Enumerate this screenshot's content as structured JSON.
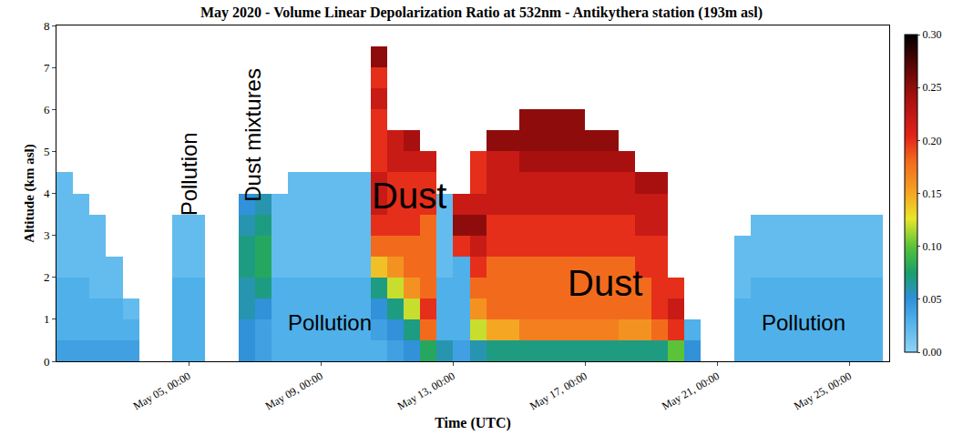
{
  "chart_data": {
    "type": "heatmap",
    "title": "May 2020 - Volume Linear Depolarization Ratio at 532nm - Antikythera station (193m asl)",
    "x_label": "Time (UTC)",
    "y_label": "Altitude (km asl)",
    "xlim": [
      1,
      26.2
    ],
    "xticks": [
      {
        "value": 5,
        "label": "May 05, 00:00"
      },
      {
        "value": 9,
        "label": "May 09, 00:00"
      },
      {
        "value": 13,
        "label": "May 13, 00:00"
      },
      {
        "value": 17,
        "label": "May 17, 00:00"
      },
      {
        "value": 21,
        "label": "May 21, 00:00"
      },
      {
        "value": 25,
        "label": "May 25, 00:00"
      }
    ],
    "ylim": [
      0,
      8
    ],
    "yticks": [
      0,
      1,
      2,
      3,
      4,
      5,
      6,
      7,
      8
    ],
    "grid": false,
    "colorbar_range": [
      0,
      0.3
    ],
    "colorbar_ticks": [
      {
        "value": 0,
        "label": "0.00"
      },
      {
        "value": 0.05,
        "label": "0.05"
      },
      {
        "value": 0.1,
        "label": "0.10"
      },
      {
        "value": 0.15,
        "label": "0.15"
      },
      {
        "value": 0.2,
        "label": "0.20"
      },
      {
        "value": 0.25,
        "label": "0.25"
      },
      {
        "value": 0.3,
        "label": "0.30"
      }
    ],
    "x": [
      1.25,
      1.75,
      2.25,
      2.75,
      3.25,
      3.75,
      4.25,
      4.75,
      5.25,
      5.75,
      6.25,
      6.75,
      7.25,
      7.75,
      8.25,
      8.75,
      9.25,
      9.75,
      10.25,
      10.75,
      11.25,
      11.75,
      12.25,
      12.75,
      13.25,
      13.75,
      14.25,
      14.75,
      15.25,
      15.75,
      16.25,
      16.75,
      17.25,
      17.75,
      18.25,
      18.75,
      19.25,
      19.75,
      20.25,
      20.75,
      21.25,
      21.75,
      22.25,
      22.75,
      23.25,
      23.75,
      24.25,
      24.75,
      25.25,
      25.75
    ],
    "y": [
      0.25,
      0.75,
      1.25,
      1.75,
      2.25,
      2.75,
      3.25,
      3.75,
      4.25,
      4.75,
      5.25,
      5.75,
      6.25,
      6.75,
      7.25,
      7.75
    ],
    "z_by_x": [
      [
        0.04,
        0.03,
        0.03,
        0.03,
        0.02,
        0.02,
        0.02,
        0.02,
        0.02,
        null,
        null,
        null,
        null,
        null,
        null,
        null
      ],
      [
        0.04,
        0.03,
        0.03,
        0.03,
        0.02,
        0.02,
        0.02,
        0.02,
        null,
        null,
        null,
        null,
        null,
        null,
        null,
        null
      ],
      [
        0.04,
        0.03,
        0.03,
        0.02,
        0.02,
        0.02,
        0.02,
        null,
        null,
        null,
        null,
        null,
        null,
        null,
        null,
        null
      ],
      [
        0.04,
        0.03,
        0.03,
        0.02,
        0.02,
        null,
        null,
        null,
        null,
        null,
        null,
        null,
        null,
        null,
        null,
        null
      ],
      [
        0.04,
        0.03,
        0.02,
        null,
        null,
        null,
        null,
        null,
        null,
        null,
        null,
        null,
        null,
        null,
        null,
        null
      ],
      [
        null,
        null,
        null,
        null,
        null,
        null,
        null,
        null,
        null,
        null,
        null,
        null,
        null,
        null,
        null,
        null
      ],
      [
        null,
        null,
        null,
        null,
        null,
        null,
        null,
        null,
        null,
        null,
        null,
        null,
        null,
        null,
        null,
        null
      ],
      [
        0.03,
        0.03,
        0.03,
        0.03,
        0.02,
        0.02,
        0.02,
        null,
        null,
        null,
        null,
        null,
        null,
        null,
        null,
        null
      ],
      [
        0.03,
        0.03,
        0.03,
        0.03,
        0.02,
        0.02,
        0.02,
        null,
        null,
        null,
        null,
        null,
        null,
        null,
        null,
        null
      ],
      [
        null,
        null,
        null,
        null,
        null,
        null,
        null,
        null,
        null,
        null,
        null,
        null,
        null,
        null,
        null,
        null
      ],
      [
        null,
        null,
        null,
        null,
        null,
        null,
        null,
        null,
        null,
        null,
        null,
        null,
        null,
        null,
        null,
        null
      ],
      [
        0.05,
        0.05,
        0.06,
        0.06,
        0.07,
        0.07,
        0.06,
        0.05,
        null,
        null,
        null,
        null,
        null,
        null,
        null,
        null
      ],
      [
        0.04,
        0.04,
        0.05,
        0.07,
        0.08,
        0.08,
        0.07,
        0.06,
        null,
        null,
        null,
        null,
        null,
        null,
        null,
        null
      ],
      [
        0.03,
        0.03,
        0.03,
        0.03,
        0.02,
        0.02,
        0.02,
        0.02,
        null,
        null,
        null,
        null,
        null,
        null,
        null,
        null
      ],
      [
        0.03,
        0.03,
        0.03,
        0.03,
        0.02,
        0.02,
        0.02,
        0.02,
        0.02,
        null,
        null,
        null,
        null,
        null,
        null,
        null
      ],
      [
        0.03,
        0.03,
        0.03,
        0.03,
        0.02,
        0.02,
        0.02,
        0.02,
        0.02,
        null,
        null,
        null,
        null,
        null,
        null,
        null
      ],
      [
        0.03,
        0.03,
        0.03,
        0.03,
        0.02,
        0.02,
        0.02,
        0.02,
        0.02,
        null,
        null,
        null,
        null,
        null,
        null,
        null
      ],
      [
        0.03,
        0.03,
        0.03,
        0.03,
        0.02,
        0.02,
        0.02,
        0.02,
        0.02,
        null,
        null,
        null,
        null,
        null,
        null,
        null
      ],
      [
        0.03,
        0.03,
        0.03,
        0.03,
        0.02,
        0.02,
        0.02,
        0.02,
        0.02,
        null,
        null,
        null,
        null,
        null,
        null,
        null
      ],
      [
        0.03,
        0.04,
        0.05,
        0.07,
        0.14,
        0.18,
        0.2,
        0.22,
        0.22,
        0.2,
        0.2,
        0.2,
        0.22,
        0.2,
        0.25,
        null
      ],
      [
        0.04,
        0.05,
        0.07,
        0.12,
        0.16,
        0.18,
        0.2,
        0.2,
        0.2,
        0.22,
        0.22,
        null,
        null,
        null,
        null,
        null
      ],
      [
        0.05,
        0.07,
        0.12,
        0.16,
        0.18,
        0.18,
        0.2,
        0.2,
        0.2,
        0.22,
        0.24,
        null,
        null,
        null,
        null,
        null
      ],
      [
        0.08,
        0.18,
        0.2,
        0.18,
        0.18,
        0.18,
        0.18,
        0.2,
        0.2,
        0.22,
        null,
        null,
        null,
        null,
        null,
        null
      ],
      [
        0.06,
        0.03,
        0.03,
        0.03,
        0.02,
        0.02,
        0.02,
        0.02,
        null,
        null,
        null,
        null,
        null,
        null,
        null,
        null
      ],
      [
        0.04,
        0.03,
        0.03,
        0.03,
        0.03,
        0.2,
        0.25,
        0.22,
        null,
        null,
        null,
        null,
        null,
        null,
        null,
        null
      ],
      [
        0.06,
        0.12,
        0.16,
        0.18,
        0.2,
        0.22,
        0.25,
        0.22,
        0.2,
        0.2,
        null,
        null,
        null,
        null,
        null,
        null
      ],
      [
        0.07,
        0.15,
        0.18,
        0.18,
        0.18,
        0.2,
        0.2,
        0.22,
        0.22,
        0.22,
        0.25,
        null,
        null,
        null,
        null,
        null
      ],
      [
        0.07,
        0.15,
        0.18,
        0.18,
        0.18,
        0.2,
        0.2,
        0.22,
        0.22,
        0.22,
        0.25,
        null,
        null,
        null,
        null,
        null
      ],
      [
        0.07,
        0.17,
        0.18,
        0.18,
        0.18,
        0.2,
        0.2,
        0.22,
        0.22,
        0.24,
        0.25,
        0.25,
        null,
        null,
        null,
        null
      ],
      [
        0.07,
        0.17,
        0.18,
        0.18,
        0.18,
        0.2,
        0.2,
        0.22,
        0.22,
        0.24,
        0.25,
        0.25,
        null,
        null,
        null,
        null
      ],
      [
        0.07,
        0.17,
        0.18,
        0.18,
        0.18,
        0.2,
        0.2,
        0.22,
        0.22,
        0.24,
        0.25,
        0.25,
        null,
        null,
        null,
        null
      ],
      [
        0.07,
        0.17,
        0.18,
        0.18,
        0.18,
        0.2,
        0.2,
        0.22,
        0.22,
        0.24,
        0.25,
        0.25,
        null,
        null,
        null,
        null
      ],
      [
        0.07,
        0.17,
        0.18,
        0.18,
        0.18,
        0.2,
        0.2,
        0.22,
        0.22,
        0.24,
        0.25,
        null,
        null,
        null,
        null,
        null
      ],
      [
        0.07,
        0.17,
        0.18,
        0.18,
        0.18,
        0.2,
        0.2,
        0.22,
        0.22,
        0.24,
        0.25,
        null,
        null,
        null,
        null,
        null
      ],
      [
        0.07,
        0.16,
        0.18,
        0.18,
        0.18,
        0.2,
        0.2,
        0.22,
        0.22,
        0.24,
        null,
        null,
        null,
        null,
        null,
        null
      ],
      [
        0.07,
        0.16,
        0.18,
        0.18,
        0.2,
        0.2,
        0.22,
        0.22,
        0.24,
        null,
        null,
        null,
        null,
        null,
        null,
        null
      ],
      [
        0.07,
        0.18,
        0.2,
        0.2,
        0.2,
        0.2,
        0.22,
        0.22,
        0.24,
        null,
        null,
        null,
        null,
        null,
        null,
        null
      ],
      [
        0.1,
        0.2,
        0.22,
        0.2,
        null,
        null,
        null,
        null,
        null,
        null,
        null,
        null,
        null,
        null,
        null,
        null
      ],
      [
        0.05,
        0.03,
        null,
        null,
        null,
        null,
        null,
        null,
        null,
        null,
        null,
        null,
        null,
        null,
        null,
        null
      ],
      [
        null,
        null,
        null,
        null,
        null,
        null,
        null,
        null,
        null,
        null,
        null,
        null,
        null,
        null,
        null,
        null
      ],
      [
        null,
        null,
        null,
        null,
        null,
        null,
        null,
        null,
        null,
        null,
        null,
        null,
        null,
        null,
        null,
        null
      ],
      [
        0.03,
        0.03,
        0.03,
        0.02,
        0.02,
        0.02,
        null,
        null,
        null,
        null,
        null,
        null,
        null,
        null,
        null,
        null
      ],
      [
        0.03,
        0.03,
        0.03,
        0.03,
        0.02,
        0.02,
        0.02,
        null,
        null,
        null,
        null,
        null,
        null,
        null,
        null,
        null
      ],
      [
        0.03,
        0.03,
        0.03,
        0.03,
        0.02,
        0.02,
        0.02,
        null,
        null,
        null,
        null,
        null,
        null,
        null,
        null,
        null
      ],
      [
        0.03,
        0.03,
        0.03,
        0.03,
        0.02,
        0.02,
        0.02,
        null,
        null,
        null,
        null,
        null,
        null,
        null,
        null,
        null
      ],
      [
        0.03,
        0.03,
        0.03,
        0.03,
        0.02,
        0.02,
        0.02,
        null,
        null,
        null,
        null,
        null,
        null,
        null,
        null,
        null
      ],
      [
        0.03,
        0.03,
        0.03,
        0.03,
        0.02,
        0.02,
        0.02,
        null,
        null,
        null,
        null,
        null,
        null,
        null,
        null,
        null
      ],
      [
        0.03,
        0.03,
        0.03,
        0.03,
        0.02,
        0.02,
        0.02,
        null,
        null,
        null,
        null,
        null,
        null,
        null,
        null,
        null
      ],
      [
        0.03,
        0.03,
        0.03,
        0.03,
        0.02,
        0.02,
        0.02,
        null,
        null,
        null,
        null,
        null,
        null,
        null,
        null,
        null
      ],
      [
        0.03,
        0.03,
        0.03,
        0.03,
        0.02,
        0.02,
        0.02,
        null,
        null,
        null,
        null,
        null,
        null,
        null,
        null,
        null
      ]
    ],
    "annotations": [
      {
        "text": "Pollution",
        "x": 5.0,
        "y": 4.46,
        "orientation": "vertical"
      },
      {
        "text": "Dust mixtures",
        "x": 6.95,
        "y": 5.4,
        "orientation": "vertical"
      },
      {
        "text": "Dust",
        "x": 11.67,
        "y": 3.95,
        "orientation": "horizontal"
      },
      {
        "text": "Pollution",
        "x": 9.27,
        "y": 0.92,
        "orientation": "horizontal"
      },
      {
        "text": "Dust",
        "x": 17.6,
        "y": 1.86,
        "orientation": "horizontal"
      },
      {
        "text": "Pollution",
        "x": 23.6,
        "y": 0.92,
        "orientation": "horizontal"
      }
    ]
  }
}
